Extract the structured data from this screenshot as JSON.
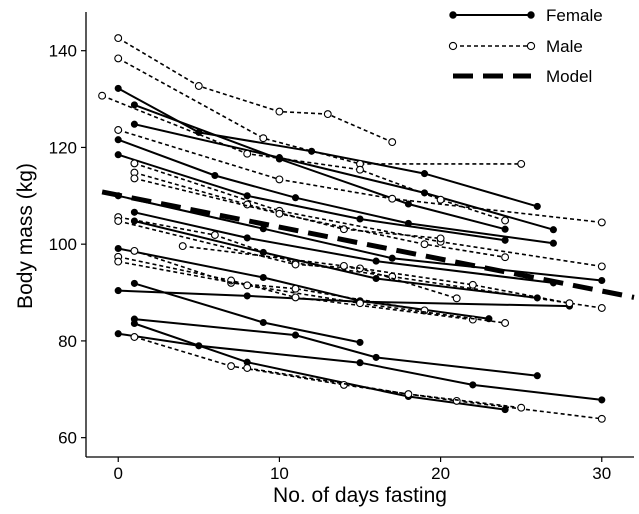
{
  "chart_data": {
    "type": "line",
    "xlabel": "No. of days fasting",
    "ylabel": "Body mass (kg)",
    "xlim": [
      -2,
      32
    ],
    "ylim": [
      56,
      148
    ],
    "xticks": [
      0,
      10,
      20,
      30
    ],
    "yticks": [
      60,
      80,
      100,
      120,
      140
    ],
    "grid": false,
    "legend_position": "top-right",
    "legend": [
      {
        "label": "Female",
        "style": "solid-filled"
      },
      {
        "label": "Male",
        "style": "dotted-open"
      },
      {
        "label": "Model",
        "style": "thick-dashed"
      }
    ],
    "model": {
      "x": [
        -1,
        32
      ],
      "y": [
        110.8,
        89.0
      ]
    },
    "series": [
      {
        "group": "Female",
        "points": [
          [
            0,
            132.2
          ],
          [
            5,
            123.1
          ],
          [
            12,
            119.2
          ],
          [
            19,
            114.6
          ],
          [
            26,
            107.8
          ]
        ]
      },
      {
        "group": "Female",
        "points": [
          [
            1,
            128.8
          ],
          [
            10,
            117.6
          ],
          [
            18,
            108.3
          ],
          [
            24,
            103.1
          ]
        ]
      },
      {
        "group": "Female",
        "points": [
          [
            1,
            124.8
          ],
          [
            10,
            117.9
          ],
          [
            19,
            110.6
          ],
          [
            27,
            103.0
          ]
        ]
      },
      {
        "group": "Female",
        "points": [
          [
            0,
            121.6
          ],
          [
            6,
            114.2
          ],
          [
            11,
            109.6
          ],
          [
            18,
            104.3
          ],
          [
            27,
            100.2
          ]
        ]
      },
      {
        "group": "Female",
        "points": [
          [
            0,
            118.5
          ],
          [
            8,
            110.0
          ],
          [
            15,
            105.2
          ],
          [
            24,
            100.8
          ]
        ]
      },
      {
        "group": "Female",
        "points": [
          [
            0,
            110.0
          ],
          [
            9,
            103.2
          ],
          [
            17,
            97.1
          ],
          [
            30,
            92.5
          ]
        ]
      },
      {
        "group": "Female",
        "points": [
          [
            1,
            106.6
          ],
          [
            8,
            101.3
          ],
          [
            16,
            96.5
          ],
          [
            27,
            92.0
          ]
        ]
      },
      {
        "group": "Female",
        "points": [
          [
            1,
            104.8
          ],
          [
            9,
            98.3
          ],
          [
            16,
            92.9
          ],
          [
            26,
            88.9
          ]
        ]
      },
      {
        "group": "Female",
        "points": [
          [
            0,
            99.1
          ],
          [
            9,
            93.1
          ],
          [
            15,
            88.3
          ],
          [
            23,
            84.6
          ]
        ]
      },
      {
        "group": "Female",
        "points": [
          [
            0,
            90.4
          ],
          [
            8,
            89.3
          ],
          [
            15,
            88.1
          ],
          [
            28,
            87.2
          ]
        ]
      },
      {
        "group": "Female",
        "points": [
          [
            1,
            91.9
          ],
          [
            9,
            83.8
          ],
          [
            15,
            79.7
          ]
        ]
      },
      {
        "group": "Female",
        "points": [
          [
            1,
            84.5
          ],
          [
            11,
            81.2
          ],
          [
            16,
            76.6
          ],
          [
            26,
            72.8
          ]
        ]
      },
      {
        "group": "Female",
        "points": [
          [
            1,
            83.6
          ],
          [
            8,
            75.6
          ],
          [
            18,
            68.5
          ],
          [
            24,
            65.8
          ]
        ]
      },
      {
        "group": "Female",
        "points": [
          [
            0,
            81.5
          ],
          [
            5,
            79.0
          ],
          [
            15,
            75.5
          ],
          [
            22,
            70.9
          ],
          [
            30,
            67.8
          ]
        ]
      },
      {
        "group": "Male",
        "points": [
          [
            0,
            142.6
          ],
          [
            5,
            132.7
          ],
          [
            10,
            127.4
          ],
          [
            13,
            126.9
          ],
          [
            17,
            121.1
          ]
        ]
      },
      {
        "group": "Male",
        "points": [
          [
            0,
            138.4
          ],
          [
            9,
            121.9
          ],
          [
            15,
            116.6
          ],
          [
            25,
            116.6
          ]
        ]
      },
      {
        "group": "Male",
        "points": [
          [
            -1,
            130.7
          ],
          [
            8,
            118.7
          ],
          [
            15,
            115.4
          ],
          [
            20,
            109.2
          ],
          [
            24,
            104.9
          ]
        ]
      },
      {
        "group": "Male",
        "points": [
          [
            0,
            123.6
          ],
          [
            10,
            113.4
          ],
          [
            17,
            109.4
          ],
          [
            30,
            104.5
          ]
        ]
      },
      {
        "group": "Male",
        "points": [
          [
            1,
            116.7
          ],
          [
            10,
            106.9
          ],
          [
            20,
            100.5
          ],
          [
            30,
            95.4
          ]
        ]
      },
      {
        "group": "Male",
        "points": [
          [
            1,
            114.8
          ],
          [
            8,
            108.2
          ],
          [
            14,
            103.1
          ],
          [
            20,
            101.2
          ]
        ]
      },
      {
        "group": "Male",
        "points": [
          [
            1,
            113.6
          ],
          [
            10,
            106.3
          ],
          [
            19,
            100.0
          ],
          [
            24,
            97.3
          ]
        ]
      },
      {
        "group": "Male",
        "points": [
          [
            0,
            105.6
          ],
          [
            6,
            101.9
          ],
          [
            11,
            96.1
          ],
          [
            17,
            93.3
          ],
          [
            30,
            86.8
          ]
        ]
      },
      {
        "group": "Male",
        "points": [
          [
            0,
            104.8
          ],
          [
            11,
            95.8
          ],
          [
            15,
            95.0
          ],
          [
            21,
            88.8
          ]
        ]
      },
      {
        "group": "Male",
        "points": [
          [
            1,
            98.6
          ],
          [
            7,
            92.0
          ],
          [
            11,
            90.8
          ],
          [
            19,
            86.3
          ]
        ]
      },
      {
        "group": "Male",
        "points": [
          [
            0,
            97.4
          ],
          [
            7,
            92.5
          ],
          [
            11,
            89.0
          ],
          [
            22,
            84.4
          ]
        ]
      },
      {
        "group": "Male",
        "points": [
          [
            0,
            96.4
          ],
          [
            8,
            91.5
          ],
          [
            15,
            87.8
          ],
          [
            24,
            83.7
          ]
        ]
      },
      {
        "group": "Male",
        "points": [
          [
            4,
            99.6
          ],
          [
            14,
            95.5
          ],
          [
            22,
            91.6
          ],
          [
            28,
            87.8
          ]
        ]
      },
      {
        "group": "Male",
        "points": [
          [
            1,
            80.8
          ],
          [
            7,
            74.8
          ],
          [
            14,
            70.9
          ],
          [
            21,
            67.6
          ],
          [
            30,
            63.9
          ]
        ]
      },
      {
        "group": "Male",
        "points": [
          [
            8,
            74.4
          ],
          [
            18,
            69.0
          ],
          [
            25,
            66.2
          ]
        ]
      }
    ]
  }
}
